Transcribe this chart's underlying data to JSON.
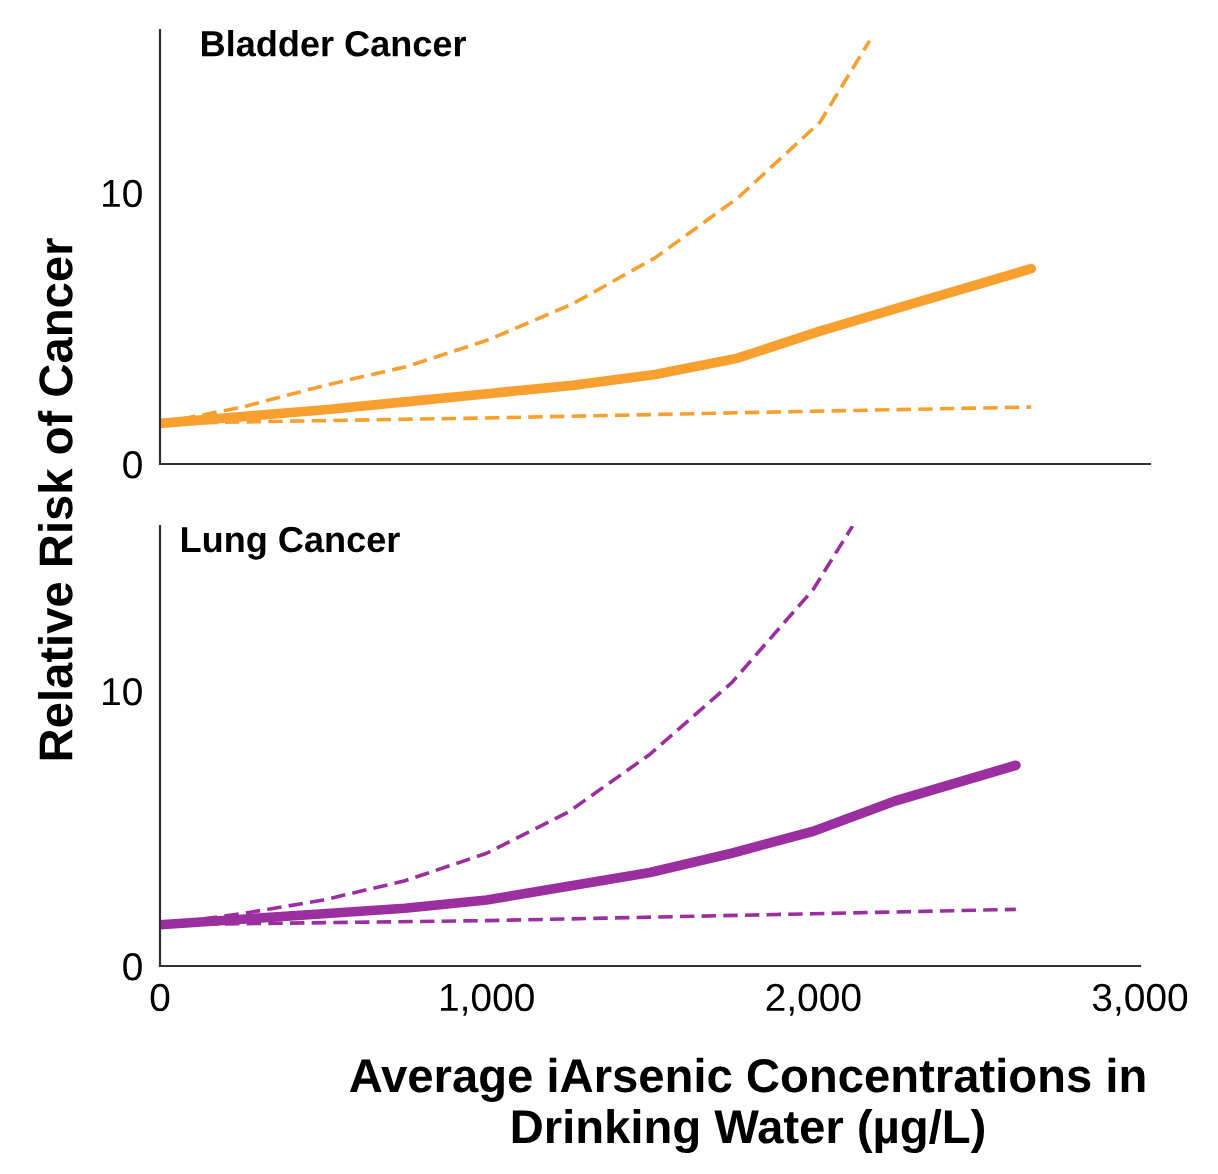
{
  "chart_data": [
    {
      "type": "line",
      "title": "Bladder Cancer",
      "ylabel": "Relative Risk of Cancer",
      "xlim": [
        0,
        3000
      ],
      "ylim": [
        0,
        16
      ],
      "yticks": [
        0,
        10
      ],
      "tick_labels": "y",
      "grid": false,
      "legend": false,
      "series": [
        {
          "color": "#f7a030",
          "line_style": "solid",
          "x": [
            0,
            250,
            500,
            750,
            1000,
            1250,
            1500,
            1750,
            2000,
            2250,
            2640
          ],
          "values": [
            1.5,
            1.75,
            2.0,
            2.3,
            2.6,
            2.9,
            3.3,
            3.9,
            4.9,
            5.8,
            7.2
          ]
        },
        {
          "color": "#f7a030",
          "line_style": "dashed",
          "x": [
            0,
            250,
            500,
            750,
            1000,
            1250,
            1500,
            1750,
            2000,
            2150
          ],
          "values": [
            1.5,
            2.1,
            2.9,
            3.6,
            4.6,
            5.9,
            7.6,
            9.8,
            12.6,
            15.6
          ]
        },
        {
          "color": "#f7a030",
          "line_style": "dashed",
          "x": [
            0,
            1000,
            2000,
            2640
          ],
          "values": [
            1.5,
            1.7,
            1.95,
            2.1
          ]
        }
      ]
    },
    {
      "type": "line",
      "title": "Lung Cancer",
      "xlabel": "Average iArsenic Concentrations in\nDrinking Water (µg/L)",
      "xlim": [
        0,
        3000
      ],
      "ylim": [
        0,
        16
      ],
      "yticks": [
        0,
        10
      ],
      "xticks": [
        0,
        {
          "value": 1000,
          "label": "1,000"
        },
        {
          "value": 2000,
          "label": "2,000"
        },
        {
          "value": 3000,
          "label": "3,000"
        }
      ],
      "grid": false,
      "legend": false,
      "series": [
        {
          "color": "#9b2fa0",
          "line_style": "solid",
          "x": [
            0,
            250,
            500,
            750,
            1000,
            1250,
            1500,
            1750,
            2000,
            2250,
            2620
          ],
          "values": [
            1.5,
            1.7,
            1.9,
            2.1,
            2.4,
            2.9,
            3.4,
            4.1,
            4.9,
            6.0,
            7.3
          ]
        },
        {
          "color": "#9b2fa0",
          "line_style": "dashed",
          "x": [
            0,
            250,
            500,
            750,
            1000,
            1250,
            1500,
            1750,
            2000,
            2120
          ],
          "values": [
            1.5,
            1.9,
            2.4,
            3.1,
            4.1,
            5.6,
            7.7,
            10.3,
            13.7,
            16
          ]
        },
        {
          "color": "#9b2fa0",
          "line_style": "dashed",
          "x": [
            0,
            1000,
            2000,
            2620
          ],
          "values": [
            1.5,
            1.65,
            1.9,
            2.06
          ]
        }
      ]
    }
  ]
}
